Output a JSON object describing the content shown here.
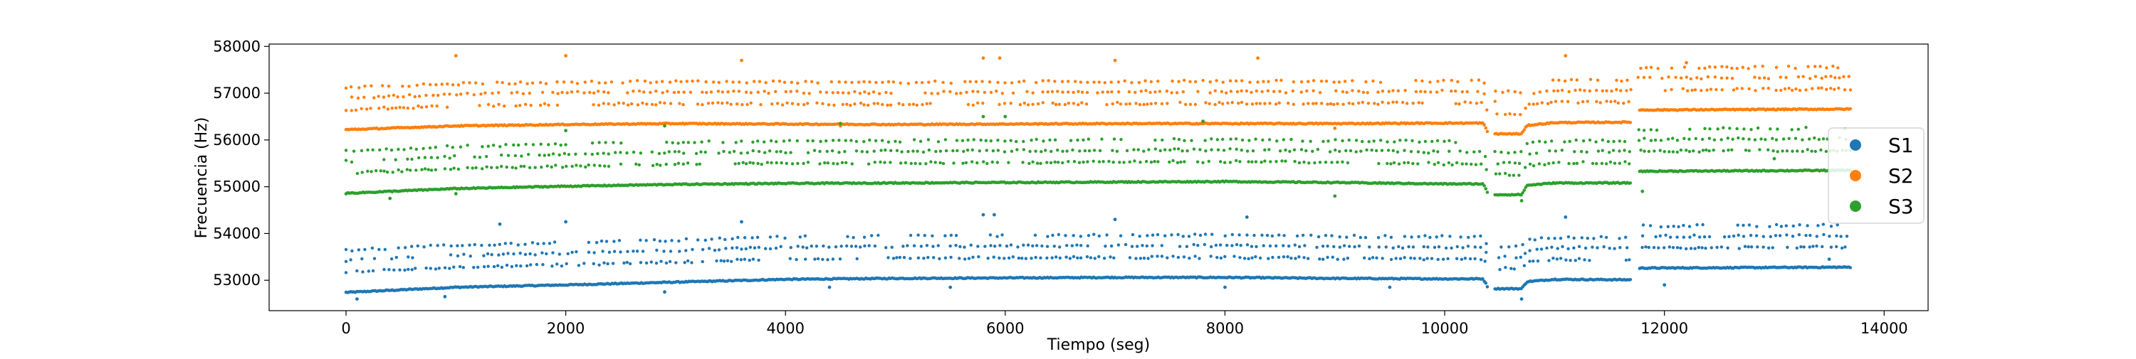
{
  "chart_data": {
    "type": "scatter",
    "title": "",
    "xlabel": "Tiempo (seg)",
    "ylabel": "Frecuencia (Hz)",
    "xlim": [
      -700,
      14400
    ],
    "ylim": [
      52350,
      58050
    ],
    "xticks": [
      0,
      2000,
      4000,
      6000,
      8000,
      10000,
      12000,
      14000
    ],
    "yticks": [
      53000,
      54000,
      55000,
      56000,
      57000,
      58000
    ],
    "xtick_labels": [
      "0",
      "2000",
      "4000",
      "6000",
      "8000",
      "10000",
      "12000",
      "14000"
    ],
    "ytick_labels": [
      "53000",
      "54000",
      "55000",
      "56000",
      "57000",
      "58000"
    ],
    "grid": false,
    "legend_position": "right",
    "series": [
      {
        "name": "S1",
        "color": "#1f77b4",
        "base_points": [
          [
            0,
            52740
          ],
          [
            1000,
            52850
          ],
          [
            2000,
            52900
          ],
          [
            3000,
            52960
          ],
          [
            4000,
            53020
          ],
          [
            5000,
            53040
          ],
          [
            6000,
            53050
          ],
          [
            7000,
            53060
          ],
          [
            8000,
            53060
          ],
          [
            9000,
            53040
          ],
          [
            10000,
            53030
          ],
          [
            10350,
            53030
          ],
          [
            10400,
            52820
          ],
          [
            10700,
            52820
          ],
          [
            10750,
            52970
          ],
          [
            11000,
            53020
          ],
          [
            11700,
            53010
          ],
          [
            11750,
            53260
          ],
          [
            13700,
            53280
          ]
        ],
        "harmonic_offsets": [
          430,
          680,
          900
        ],
        "outliers": [
          [
            100,
            52600
          ],
          [
            900,
            52650
          ],
          [
            1400,
            54200
          ],
          [
            2000,
            54250
          ],
          [
            2900,
            52750
          ],
          [
            3600,
            54250
          ],
          [
            4400,
            52850
          ],
          [
            5500,
            52850
          ],
          [
            5800,
            54400
          ],
          [
            5900,
            54400
          ],
          [
            7000,
            54300
          ],
          [
            8000,
            52850
          ],
          [
            8200,
            54350
          ],
          [
            9500,
            52850
          ],
          [
            10700,
            52600
          ],
          [
            11100,
            54350
          ],
          [
            12000,
            52900
          ],
          [
            13500,
            53450
          ]
        ]
      },
      {
        "name": "S2",
        "color": "#ff7f0e",
        "base_points": [
          [
            0,
            56220
          ],
          [
            1000,
            56300
          ],
          [
            2000,
            56330
          ],
          [
            3000,
            56350
          ],
          [
            4000,
            56340
          ],
          [
            5000,
            56330
          ],
          [
            6000,
            56340
          ],
          [
            7000,
            56350
          ],
          [
            8000,
            56350
          ],
          [
            9000,
            56350
          ],
          [
            10000,
            56360
          ],
          [
            10350,
            56360
          ],
          [
            10400,
            56130
          ],
          [
            10700,
            56130
          ],
          [
            10750,
            56310
          ],
          [
            11000,
            56370
          ],
          [
            11700,
            56380
          ],
          [
            11750,
            56640
          ],
          [
            13700,
            56660
          ]
        ],
        "harmonic_offsets": [
          430,
          680,
          900
        ],
        "outliers": [
          [
            1000,
            57800
          ],
          [
            2000,
            57800
          ],
          [
            3600,
            57700
          ],
          [
            5800,
            57750
          ],
          [
            5950,
            57750
          ],
          [
            7000,
            57700
          ],
          [
            8300,
            57750
          ],
          [
            11100,
            57800
          ],
          [
            12200,
            57650
          ],
          [
            4500,
            56300
          ],
          [
            9000,
            56250
          ]
        ]
      },
      {
        "name": "S3",
        "color": "#2ca02c",
        "base_points": [
          [
            0,
            54860
          ],
          [
            1000,
            54960
          ],
          [
            2000,
            55010
          ],
          [
            3000,
            55050
          ],
          [
            4000,
            55070
          ],
          [
            5000,
            55080
          ],
          [
            6000,
            55090
          ],
          [
            7000,
            55100
          ],
          [
            8000,
            55110
          ],
          [
            9000,
            55090
          ],
          [
            10000,
            55060
          ],
          [
            10350,
            55060
          ],
          [
            10400,
            54830
          ],
          [
            10700,
            54830
          ],
          [
            10750,
            55030
          ],
          [
            11000,
            55080
          ],
          [
            11700,
            55080
          ],
          [
            11750,
            55330
          ],
          [
            13700,
            55350
          ]
        ],
        "harmonic_offsets": [
          430,
          680,
          900
        ],
        "outliers": [
          [
            400,
            54750
          ],
          [
            1000,
            54850
          ],
          [
            2000,
            56200
          ],
          [
            2900,
            56300
          ],
          [
            4500,
            56350
          ],
          [
            5800,
            56500
          ],
          [
            6000,
            56500
          ],
          [
            7800,
            56400
          ],
          [
            9000,
            54800
          ],
          [
            10700,
            54700
          ],
          [
            11800,
            54900
          ],
          [
            13000,
            55600
          ]
        ]
      }
    ],
    "gaps": [
      [
        10400,
        10450
      ],
      [
        11700,
        11760
      ]
    ]
  }
}
